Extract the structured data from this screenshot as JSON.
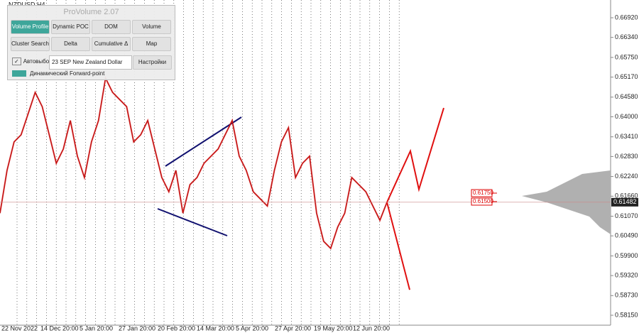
{
  "chart_data": {
    "type": "line",
    "symbol": "NZDUSD,H4",
    "ylim": [
      0.57857,
      0.67443
    ],
    "yticks": [
      {
        "value": 0.6692,
        "label": "0.66920"
      },
      {
        "value": 0.6634,
        "label": "0.66340"
      },
      {
        "value": 0.6575,
        "label": "0.65750"
      },
      {
        "value": 0.6517,
        "label": "0.65170"
      },
      {
        "value": 0.6458,
        "label": "0.64580"
      },
      {
        "value": 0.64,
        "label": "0.64000"
      },
      {
        "value": 0.6341,
        "label": "0.63410"
      },
      {
        "value": 0.6283,
        "label": "0.62830"
      },
      {
        "value": 0.6224,
        "label": "0.62240"
      },
      {
        "value": 0.6166,
        "label": "0.61660"
      },
      {
        "value": 0.6107,
        "label": "0.61070"
      },
      {
        "value": 0.6049,
        "label": "0.60490"
      },
      {
        "value": 0.599,
        "label": "0.59900"
      },
      {
        "value": 0.5932,
        "label": "0.59320"
      },
      {
        "value": 0.5873,
        "label": "0.58730"
      },
      {
        "value": 0.5815,
        "label": "0.58150"
      }
    ],
    "x_labels": [
      "22 Nov 2022",
      "14 Dec 20:00",
      "5 Jan 20:00",
      "27 Jan 20:00",
      "20 Feb 20:00",
      "14 Mar 20:00",
      "5 Apr 20:00",
      "27 Apr 20:00",
      "19 May 20:00",
      "12 Jun 20:00"
    ],
    "series": [
      {
        "name": "price",
        "color": "#111111",
        "values": [
          0.6116,
          0.6242,
          0.6326,
          0.6347,
          0.6409,
          0.6472,
          0.643,
          0.6347,
          0.6263,
          0.6305,
          0.6389,
          0.6284,
          0.6221,
          0.6326,
          0.6389,
          0.6514,
          0.6472,
          0.6451,
          0.643,
          0.6326,
          0.6347,
          0.6389,
          0.6305,
          0.6221,
          0.6179,
          0.6242,
          0.6116,
          0.62,
          0.6221,
          0.6263,
          0.6284,
          0.6305,
          0.6347,
          0.6389,
          0.6284,
          0.6242,
          0.6179,
          0.6158,
          0.6137,
          0.6242,
          0.6326,
          0.6368,
          0.6221,
          0.6263,
          0.6284,
          0.6116,
          0.6033,
          0.6012,
          0.6075,
          0.6116,
          0.6221,
          0.62,
          0.6179,
          0.6137,
          0.6095,
          0.6148
        ]
      },
      {
        "name": "forecast-up",
        "color": "#e01010",
        "values": [
          0.6148,
          0.6299,
          0.6186,
          0.6426
        ]
      },
      {
        "name": "forecast-down",
        "color": "#e01010",
        "values": [
          0.6148,
          0.589
        ]
      }
    ],
    "current_price": {
      "value": 0.61482,
      "label": "0.61482"
    },
    "levels": [
      {
        "value": 0.6175,
        "label": "0.61750"
      },
      {
        "value": 0.615,
        "label": "0.61500"
      }
    ]
  },
  "panel": {
    "title": "ProVolume 2.07",
    "buttons": [
      "Volume Profile",
      "Dynamic POC",
      "DOM",
      "Volume",
      "Cluster Search",
      "Delta",
      "Cumulative Δ",
      "Map"
    ],
    "autoselect": "Автовыбор",
    "instrument": "23 SEP New Zealand Dollar",
    "settings": "Настройки",
    "forward": "Динамический Forward-point"
  }
}
